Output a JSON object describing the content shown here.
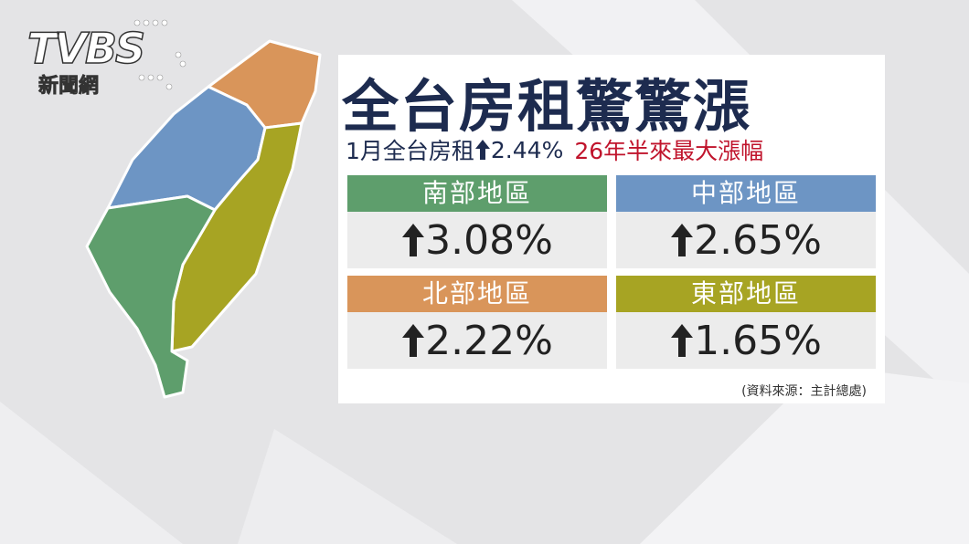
{
  "logo": {
    "brand": "TVBS",
    "sub": "新聞網"
  },
  "header": {
    "title": "全台房租驚驚漲"
  },
  "subtitle": {
    "lead": "1月全台房租",
    "change": "2.44%",
    "highlight": "26年半來最大漲幅"
  },
  "regions": [
    {
      "name": "南部地區",
      "change": "3.08%",
      "color": "#5e9e6c"
    },
    {
      "name": "中部地區",
      "change": "2.65%",
      "color": "#6d95c4"
    },
    {
      "name": "北部地區",
      "change": "2.22%",
      "color": "#d9955a"
    },
    {
      "name": "東部地區",
      "change": "1.65%",
      "color": "#a7a423"
    }
  ],
  "source": "(資料來源：主計總處)"
}
